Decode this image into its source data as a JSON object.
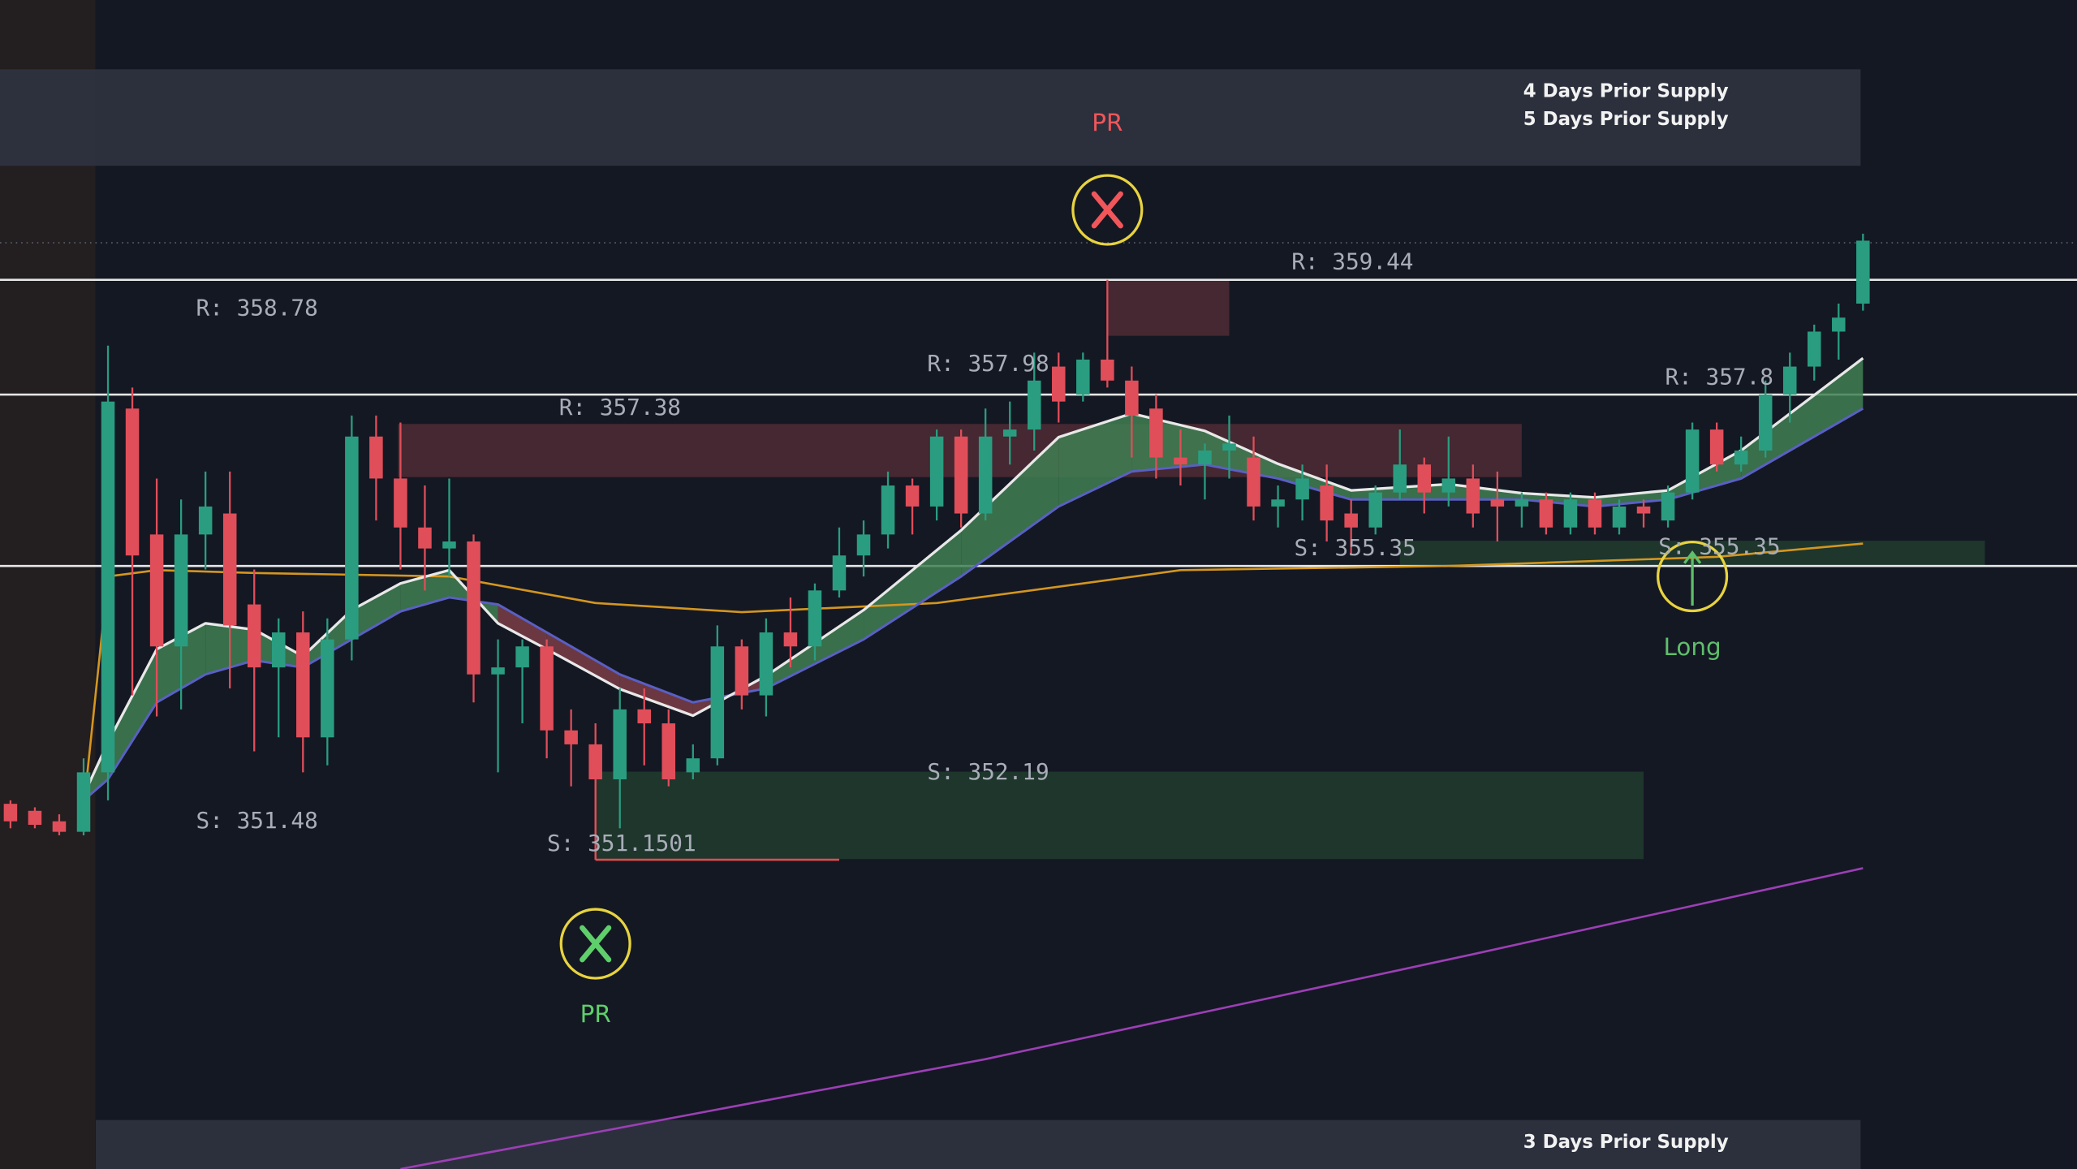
{
  "chart_data": {
    "type": "candlestick",
    "xlim": [
      -0.43,
      84.78
    ],
    "ylim": [
      346.73,
      363.44
    ],
    "up_color": "#2a9d80",
    "down_color": "#e04e5a",
    "open": [
      351.95,
      351.85,
      351.7,
      351.55,
      352.4,
      357.6,
      355.8,
      354.2,
      355.8,
      356.1,
      354.8,
      353.9,
      354.4,
      352.9,
      354.3,
      357.2,
      356.6,
      355.9,
      355.6,
      355.7,
      353.8,
      353.9,
      354.2,
      353.0,
      352.8,
      352.3,
      353.3,
      353.1,
      352.4,
      352.6,
      354.2,
      353.5,
      354.4,
      354.2,
      355.0,
      355.5,
      355.8,
      356.5,
      356.2,
      357.2,
      356.1,
      357.2,
      357.3,
      358.2,
      357.8,
      358.3,
      358.0,
      357.6,
      356.9,
      356.8,
      357.0,
      356.9,
      356.2,
      356.3,
      356.5,
      356.1,
      355.9,
      356.4,
      356.8,
      356.4,
      356.6,
      356.3,
      356.2,
      356.3,
      355.9,
      356.3,
      355.9,
      356.2,
      356.0,
      356.4,
      357.3,
      356.8,
      357.0,
      357.8,
      358.2,
      358.7,
      359.1
    ],
    "high": [
      352.0,
      351.9,
      351.8,
      352.6,
      358.5,
      357.9,
      356.6,
      356.3,
      356.7,
      356.7,
      355.3,
      354.6,
      354.7,
      354.6,
      357.5,
      357.5,
      357.4,
      356.5,
      356.6,
      355.8,
      354.3,
      354.3,
      354.3,
      353.3,
      353.1,
      353.6,
      353.6,
      353.3,
      352.8,
      354.5,
      354.3,
      354.6,
      354.9,
      355.1,
      355.9,
      356.0,
      356.7,
      356.6,
      357.3,
      357.3,
      357.6,
      357.7,
      358.4,
      358.4,
      358.4,
      359.44,
      358.2,
      357.8,
      357.3,
      357.1,
      357.5,
      357.2,
      356.5,
      356.8,
      356.8,
      356.3,
      356.5,
      357.3,
      356.9,
      357.2,
      356.8,
      356.7,
      356.4,
      356.4,
      356.4,
      356.4,
      356.3,
      356.3,
      356.5,
      357.4,
      357.4,
      357.2,
      358.0,
      358.4,
      358.8,
      359.1,
      360.1
    ],
    "low": [
      351.6,
      351.6,
      351.5,
      351.5,
      352.0,
      353.5,
      353.2,
      353.3,
      355.3,
      353.6,
      352.7,
      352.9,
      352.4,
      352.5,
      354.0,
      356.0,
      355.3,
      355.0,
      355.2,
      353.4,
      352.4,
      353.1,
      352.6,
      352.2,
      351.15,
      351.6,
      352.5,
      352.2,
      352.3,
      352.5,
      353.3,
      353.2,
      353.9,
      354.0,
      354.9,
      355.2,
      355.6,
      355.8,
      356.0,
      355.9,
      356.0,
      356.8,
      357.0,
      357.4,
      357.7,
      357.9,
      356.9,
      356.6,
      356.5,
      356.3,
      356.6,
      356.0,
      355.9,
      356.0,
      355.7,
      355.5,
      355.8,
      356.3,
      356.1,
      356.2,
      355.9,
      355.7,
      355.9,
      355.8,
      355.8,
      355.8,
      355.8,
      355.9,
      355.9,
      356.3,
      356.7,
      356.7,
      356.9,
      357.4,
      358.0,
      358.3,
      359.0
    ],
    "close": [
      351.7,
      351.65,
      351.55,
      352.4,
      357.7,
      355.5,
      354.2,
      355.8,
      356.2,
      354.5,
      353.9,
      354.4,
      352.9,
      354.3,
      357.2,
      356.6,
      355.9,
      355.6,
      355.7,
      353.8,
      353.9,
      354.2,
      353.0,
      352.8,
      352.3,
      353.3,
      353.1,
      352.3,
      352.6,
      354.2,
      353.5,
      354.4,
      354.2,
      355.0,
      355.5,
      355.8,
      356.5,
      356.2,
      357.2,
      356.1,
      357.2,
      357.3,
      358.0,
      357.7,
      358.3,
      358.0,
      357.5,
      356.9,
      356.8,
      357.0,
      357.1,
      356.2,
      356.3,
      356.6,
      356.0,
      355.9,
      356.4,
      356.8,
      356.4,
      356.6,
      356.1,
      356.2,
      356.3,
      355.9,
      356.3,
      355.9,
      356.2,
      356.1,
      356.4,
      357.3,
      356.8,
      357.0,
      357.8,
      358.2,
      358.7,
      358.9,
      360.0
    ],
    "ribbon": {
      "up_color": "#3f7f52",
      "down_color": "#7a3e48",
      "x": [
        3,
        4,
        6,
        8,
        10,
        12,
        14,
        16,
        18,
        20,
        22,
        25,
        28,
        31,
        35,
        39,
        43,
        46,
        49,
        52,
        55,
        59,
        62,
        65,
        68,
        71,
        76
      ],
      "fast": {
        "color": "#e8e8e8",
        "values": [
          352.07,
          352.83,
          354.16,
          354.53,
          354.44,
          354.06,
          354.72,
          355.1,
          355.29,
          354.53,
          354.16,
          353.59,
          353.21,
          353.78,
          354.72,
          355.86,
          357.19,
          357.53,
          357.28,
          356.81,
          356.43,
          356.52,
          356.39,
          356.33,
          356.43,
          357.0,
          358.32
        ]
      },
      "slow": {
        "color": "#5a5fc4",
        "values": [
          352.0,
          352.3,
          353.4,
          353.8,
          354.0,
          353.9,
          354.3,
          354.7,
          354.9,
          354.8,
          354.4,
          353.8,
          353.4,
          353.6,
          354.3,
          355.2,
          356.2,
          356.7,
          356.8,
          356.6,
          356.3,
          356.3,
          356.3,
          356.2,
          356.3,
          356.6,
          357.6
        ]
      }
    },
    "lines": [
      {
        "color": "#d4961f",
        "x": [
          3,
          4,
          6,
          10,
          18,
          24,
          30,
          38,
          44,
          48,
          59,
          70,
          76
        ],
        "values": [
          351.88,
          355.2,
          355.29,
          355.25,
          355.2,
          354.82,
          354.69,
          354.82,
          355.1,
          355.29,
          355.35,
          355.48,
          355.67
        ]
      },
      {
        "color": "#9c3fb5",
        "x": [
          16,
          40,
          60,
          76
        ],
        "values": [
          346.73,
          348.3,
          349.8,
          351.03
        ]
      }
    ],
    "zones": [
      {
        "x": [
          -0.43,
          75.9
        ],
        "y": [
          362.45,
          361.07
        ],
        "color": "#2f3340",
        "labels": [
          "4 Days Prior Supply",
          "5 Days Prior Supply"
        ]
      },
      {
        "x": [
          45,
          50
        ],
        "y": [
          359.44,
          358.64
        ],
        "color": "#4a2a33"
      },
      {
        "x": [
          15.9,
          62
        ],
        "y": [
          357.38,
          356.62
        ],
        "color": "#4a2a33"
      },
      {
        "x": [
          24,
          67
        ],
        "y": [
          352.41,
          351.16
        ],
        "color": "#1f3a2e"
      },
      {
        "x": [
          57,
          81
        ],
        "y": [
          355.71,
          355.35
        ],
        "color": "#1f3a2e"
      },
      {
        "x": [
          3.5,
          75.9
        ],
        "y": [
          347.43,
          346.73
        ],
        "color": "#2f3340",
        "labels": [
          "3 Days Prior Supply"
        ]
      }
    ],
    "hlines": [
      359.44,
      357.8,
      355.35
    ],
    "last_price": 359.97,
    "segments": [
      {
        "x": [
          24,
          34
        ],
        "value": 351.15,
        "color": "#e04e4e"
      }
    ],
    "markers": [
      {
        "x": 45,
        "value": 360.44,
        "kind": "cross",
        "color": "#f0565a",
        "label": "PR",
        "label_position": "above"
      },
      {
        "x": 24,
        "value": 349.95,
        "kind": "cross",
        "color": "#5fcf6b",
        "label": "PR",
        "label_position": "below"
      },
      {
        "x": 69,
        "value": 355.2,
        "kind": "arrow",
        "color": "#5fbf6b",
        "label": "Long",
        "label_position": "below"
      }
    ],
    "annotations": [
      "R: 358.78",
      "R: 357.38",
      "R: 357.98",
      "R: 359.44",
      "R: 357.8",
      "S: 355.35",
      "S: 355.35",
      "S: 352.19",
      "S: 351.48",
      "S: 351.1501"
    ]
  }
}
